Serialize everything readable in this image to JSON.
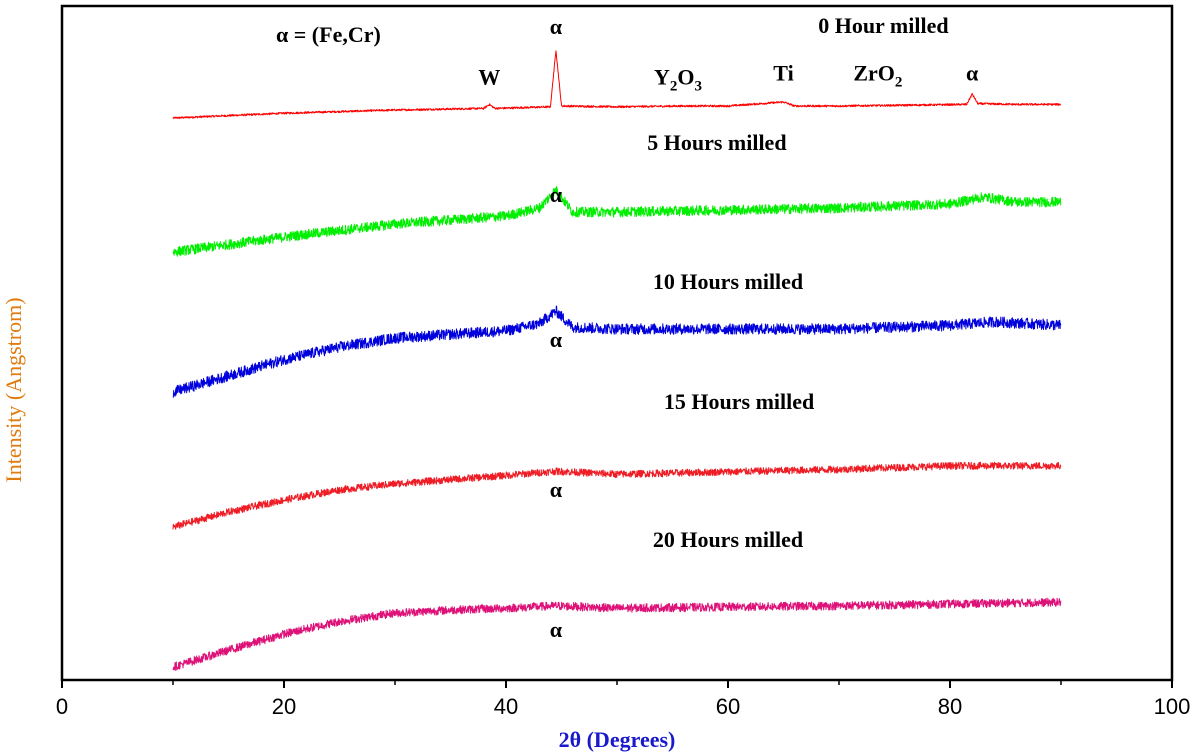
{
  "chart_data": {
    "type": "line",
    "xlabel": "2θ (Degrees)",
    "ylabel": "Intensity (Angstrom)",
    "xlim": [
      0,
      100
    ],
    "xticks": [
      0,
      20,
      40,
      60,
      80,
      100
    ],
    "xtick_labels": [
      "0",
      "20",
      "40",
      "60",
      "80",
      "100"
    ],
    "yticks_shown": false,
    "grid": false,
    "legend": "none",
    "series": [
      {
        "name": "0 Hour milled",
        "color": "#ff0000",
        "x": [
          10,
          20,
          30,
          38,
          38.5,
          39,
          44,
          44.5,
          45,
          50,
          56,
          60,
          65,
          66,
          70,
          76,
          81.5,
          82,
          82.5,
          86,
          90
        ],
        "y": [
          0.0,
          0.06,
          0.1,
          0.12,
          0.17,
          0.12,
          0.14,
          0.85,
          0.15,
          0.14,
          0.15,
          0.15,
          0.2,
          0.15,
          0.15,
          0.16,
          0.17,
          0.3,
          0.18,
          0.17,
          0.17
        ],
        "noise": 0.012
      },
      {
        "name": "5 Hours milled",
        "color": "#00ee00",
        "x": [
          10,
          20,
          30,
          40,
          43,
          44.5,
          46,
          50,
          60,
          70,
          80,
          83,
          86,
          90
        ],
        "y": [
          0.0,
          0.15,
          0.28,
          0.36,
          0.44,
          0.62,
          0.4,
          0.4,
          0.42,
          0.44,
          0.48,
          0.55,
          0.5,
          0.5
        ],
        "noise": 0.05
      },
      {
        "name": "10 Hours milled",
        "color": "#0000dd",
        "x": [
          10,
          15,
          20,
          25,
          30,
          40,
          43,
          44.5,
          46,
          50,
          60,
          70,
          80,
          84,
          90
        ],
        "y": [
          0.0,
          0.18,
          0.36,
          0.5,
          0.6,
          0.68,
          0.76,
          0.9,
          0.72,
          0.7,
          0.7,
          0.7,
          0.74,
          0.78,
          0.74
        ],
        "noise": 0.06
      },
      {
        "name": "15 Hours milled",
        "color": "#ee1c25",
        "x": [
          10,
          15,
          20,
          25,
          30,
          40,
          44.5,
          50,
          60,
          70,
          80,
          90
        ],
        "y": [
          0.0,
          0.25,
          0.45,
          0.62,
          0.72,
          0.86,
          0.93,
          0.88,
          0.92,
          0.96,
          1.02,
          1.02
        ],
        "noise": 0.06
      },
      {
        "name": "20 Hours milled",
        "color": "#dd1177",
        "x": [
          10,
          15,
          20,
          25,
          30,
          35,
          40,
          44.5,
          50,
          60,
          70,
          80,
          90
        ],
        "y": [
          0.0,
          0.28,
          0.55,
          0.76,
          0.9,
          0.95,
          0.98,
          1.02,
          0.98,
          1.0,
          1.02,
          1.05,
          1.08
        ],
        "noise": 0.07
      }
    ],
    "series_labels": [
      {
        "text": "0 Hour milled",
        "x": 74
      },
      {
        "text": "5 Hours milled",
        "x": 59
      },
      {
        "text": "10 Hours milled",
        "x": 60
      },
      {
        "text": "15 Hours milled",
        "x": 61
      },
      {
        "text": "20 Hours milled",
        "x": 60
      }
    ],
    "annotations": [
      {
        "text": "α = (Fe,Cr)",
        "x": 24,
        "series": 0,
        "level": 0.95
      },
      {
        "text": "α",
        "x": 44.5,
        "series": 0,
        "level": 1.05
      },
      {
        "text": "W",
        "x": 38.5,
        "series": 0,
        "level": 0.42
      },
      {
        "text": "Y",
        "sub": "2",
        "text2": "O",
        "sub2": "3",
        "x": 55.5,
        "series": 0,
        "level": 0.42
      },
      {
        "text": "Ti",
        "x": 65,
        "series": 0,
        "level": 0.47
      },
      {
        "text": "ZrO",
        "sub": "2",
        "x": 73.5,
        "series": 0,
        "level": 0.47
      },
      {
        "text": "α",
        "x": 82,
        "series": 0,
        "level": 0.47
      },
      {
        "text": "α",
        "x": 44.5,
        "series": 1,
        "level": 0.5
      },
      {
        "text": "α",
        "x": 44.5,
        "series": 2,
        "level": 0.5
      },
      {
        "text": "α",
        "x": 44.5,
        "series": 3,
        "level": 0.5
      },
      {
        "text": "α",
        "x": 44.5,
        "series": 4,
        "level": 0.5
      }
    ]
  }
}
